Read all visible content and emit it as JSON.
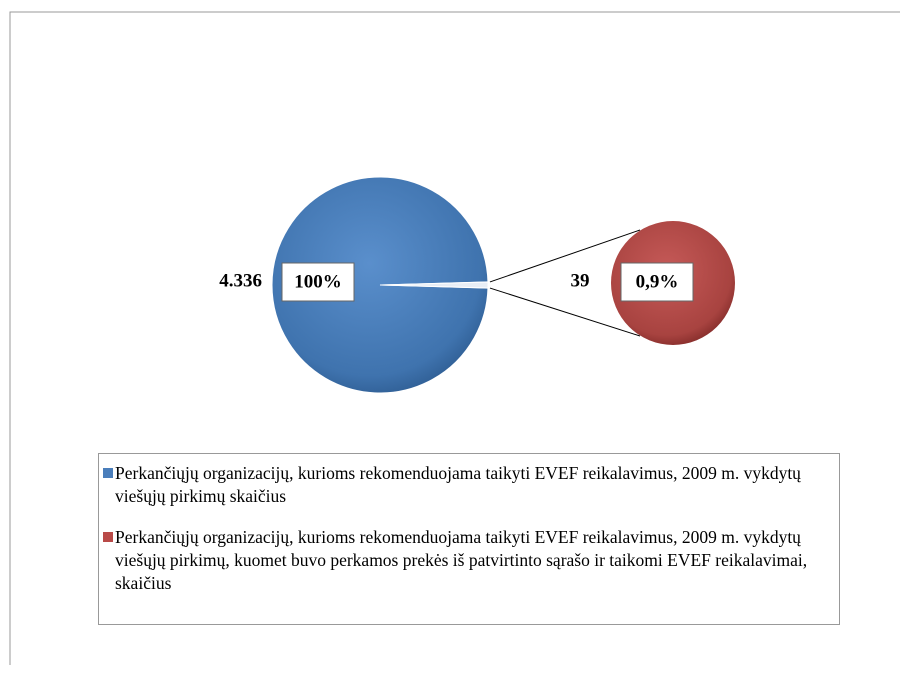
{
  "chart_data": {
    "type": "pie-of-pie",
    "categories": [
      "Perkančiųjų organizacijų, kurioms rekomenduojama taikyti EVEF reikalavimus, 2009 m. vykdytų viešųjų pirkimų skaičius",
      "Perkančiųjų organizacijų, kurioms rekomenduojama taikyti EVEF reikalavimus, 2009 m. vykdytų viešųjų pirkimų, kuomet buvo perkamos prekės iš patvirtinto sąrašo ir taikomi EVEF reikalavimai, skaičius"
    ],
    "values": [
      4336,
      39
    ],
    "value_labels": [
      "4.336",
      "39"
    ],
    "percents": [
      100,
      0.9
    ],
    "percent_labels": [
      "100%",
      "0,9%"
    ],
    "colors": [
      "#4a7ebb",
      "#b94a48"
    ]
  }
}
